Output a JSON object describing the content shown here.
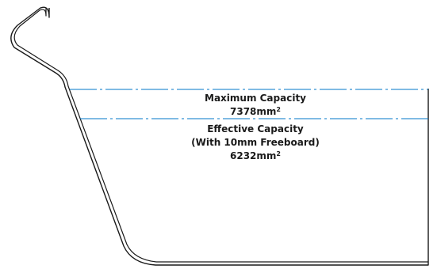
{
  "colors": {
    "outline": "#1a1a1a",
    "level_line": "#0077c8",
    "background": "#ffffff"
  },
  "labels": {
    "maximum_title": "Maximum Capacity",
    "maximum_value": "7378mm",
    "effective_title": "Effective Capacity",
    "effective_note": "(With 10mm Freeboard)",
    "effective_value": "6232mm",
    "area_superscript": "2"
  }
}
